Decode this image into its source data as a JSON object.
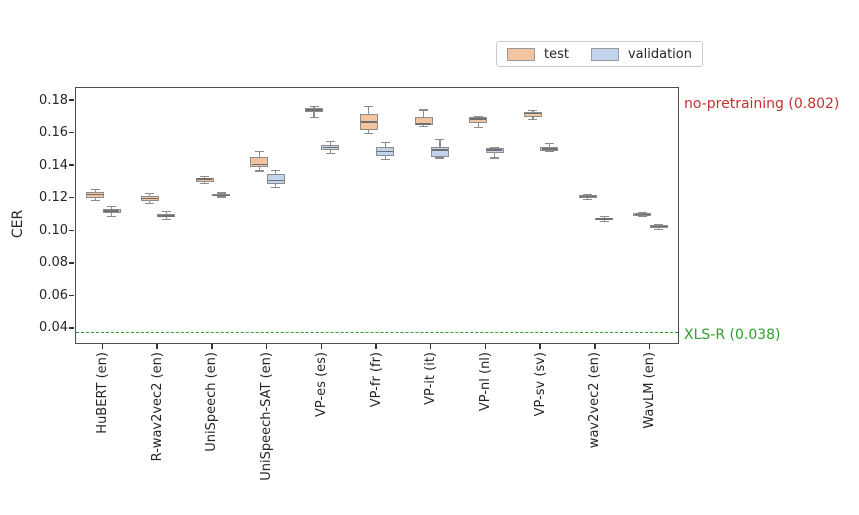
{
  "legend": {
    "items": [
      {
        "label": "test",
        "color": "#f2c5a0"
      },
      {
        "label": "validation",
        "color": "#c2d3ed"
      }
    ]
  },
  "annotations": [
    {
      "text": "no-pretraining (0.802)",
      "color": "#c62f2f",
      "value": 0.802,
      "position": "top-right-outside"
    },
    {
      "text": "XLS-R (0.038)",
      "color": "#2ca02c",
      "value": 0.038,
      "position": "right-of-dashed-line"
    }
  ],
  "chart_data": {
    "type": "boxplot",
    "title": "",
    "xlabel": "",
    "ylabel": "CER",
    "ylim": [
      0.0314,
      0.188
    ],
    "yticks": [
      0.18,
      0.16,
      0.14,
      0.12,
      0.1,
      0.08,
      0.06,
      0.04
    ],
    "ytick_labels": [
      "0.18",
      "0.16",
      "0.14",
      "0.12",
      "0.10",
      "0.08",
      "0.06",
      "0.04"
    ],
    "grid": false,
    "legend_position": "above-plot-center-right",
    "categories": [
      "HuBERT (en)",
      "R-wav2vec2 (en)",
      "UniSpeech (en)",
      "UniSpeech-SAT (en)",
      "VP-es (es)",
      "VP-fr (fr)",
      "VP-it (it)",
      "VP-nl (nl)",
      "VP-sv (sv)",
      "wav2vec2 (en)",
      "WavLM (en)"
    ],
    "reference_line": {
      "label": "XLS-R (0.038)",
      "value": 0.038,
      "color": "#2ca02c",
      "style": "dashed"
    },
    "offscale_line": {
      "label": "no-pretraining (0.802)",
      "value": 0.802,
      "color": "#c62f2f"
    },
    "edge_color": "#8c8c8c",
    "median_color": "#6f6f6f",
    "series": [
      {
        "name": "test",
        "fill": "#f2c5a0",
        "boxes": [
          {
            "whislo": 0.119,
            "q1": 0.1205,
            "med": 0.1225,
            "q3": 0.124,
            "whishi": 0.1255
          },
          {
            "whislo": 0.117,
            "q1": 0.1185,
            "med": 0.12,
            "q3": 0.1215,
            "whishi": 0.123
          },
          {
            "whislo": 0.1295,
            "q1": 0.1305,
            "med": 0.132,
            "q3": 0.1325,
            "whishi": 0.1335
          },
          {
            "whislo": 0.137,
            "q1": 0.1395,
            "med": 0.141,
            "q3": 0.1455,
            "whishi": 0.149
          },
          {
            "whislo": 0.17,
            "q1": 0.173,
            "med": 0.1745,
            "q3": 0.176,
            "whishi": 0.1765
          },
          {
            "whislo": 0.16,
            "q1": 0.1625,
            "med": 0.167,
            "q3": 0.172,
            "whishi": 0.1765
          },
          {
            "whislo": 0.1645,
            "q1": 0.1655,
            "med": 0.166,
            "q3": 0.17,
            "whishi": 0.1745
          },
          {
            "whislo": 0.1635,
            "q1": 0.1665,
            "med": 0.169,
            "q3": 0.17,
            "whishi": 0.1705
          },
          {
            "whislo": 0.1685,
            "q1": 0.17,
            "med": 0.1725,
            "q3": 0.1735,
            "whishi": 0.174
          },
          {
            "whislo": 0.1195,
            "q1": 0.1205,
            "med": 0.1212,
            "q3": 0.122,
            "whishi": 0.1225
          },
          {
            "whislo": 0.109,
            "q1": 0.1095,
            "med": 0.1102,
            "q3": 0.111,
            "whishi": 0.1115
          }
        ]
      },
      {
        "name": "validation",
        "fill": "#c2d3ed",
        "boxes": [
          {
            "whislo": 0.109,
            "q1": 0.111,
            "med": 0.1125,
            "q3": 0.1135,
            "whishi": 0.115
          },
          {
            "whislo": 0.107,
            "q1": 0.1085,
            "med": 0.1095,
            "q3": 0.1105,
            "whishi": 0.112
          },
          {
            "whislo": 0.121,
            "q1": 0.1215,
            "med": 0.122,
            "q3": 0.123,
            "whishi": 0.1235
          },
          {
            "whislo": 0.1268,
            "q1": 0.129,
            "med": 0.1313,
            "q3": 0.135,
            "whishi": 0.1374
          },
          {
            "whislo": 0.148,
            "q1": 0.15,
            "med": 0.1515,
            "q3": 0.153,
            "whishi": 0.155
          },
          {
            "whislo": 0.144,
            "q1": 0.146,
            "med": 0.149,
            "q3": 0.152,
            "whishi": 0.1545
          },
          {
            "whislo": 0.145,
            "q1": 0.1455,
            "med": 0.15,
            "q3": 0.1515,
            "whishi": 0.1565
          },
          {
            "whislo": 0.145,
            "q1": 0.148,
            "med": 0.15,
            "q3": 0.151,
            "whishi": 0.1515
          },
          {
            "whislo": 0.149,
            "q1": 0.1495,
            "med": 0.1505,
            "q3": 0.152,
            "whishi": 0.154
          },
          {
            "whislo": 0.1062,
            "q1": 0.1068,
            "med": 0.1076,
            "q3": 0.1084,
            "whishi": 0.109
          },
          {
            "whislo": 0.101,
            "q1": 0.1018,
            "med": 0.1028,
            "q3": 0.1037,
            "whishi": 0.1042
          }
        ]
      }
    ]
  }
}
